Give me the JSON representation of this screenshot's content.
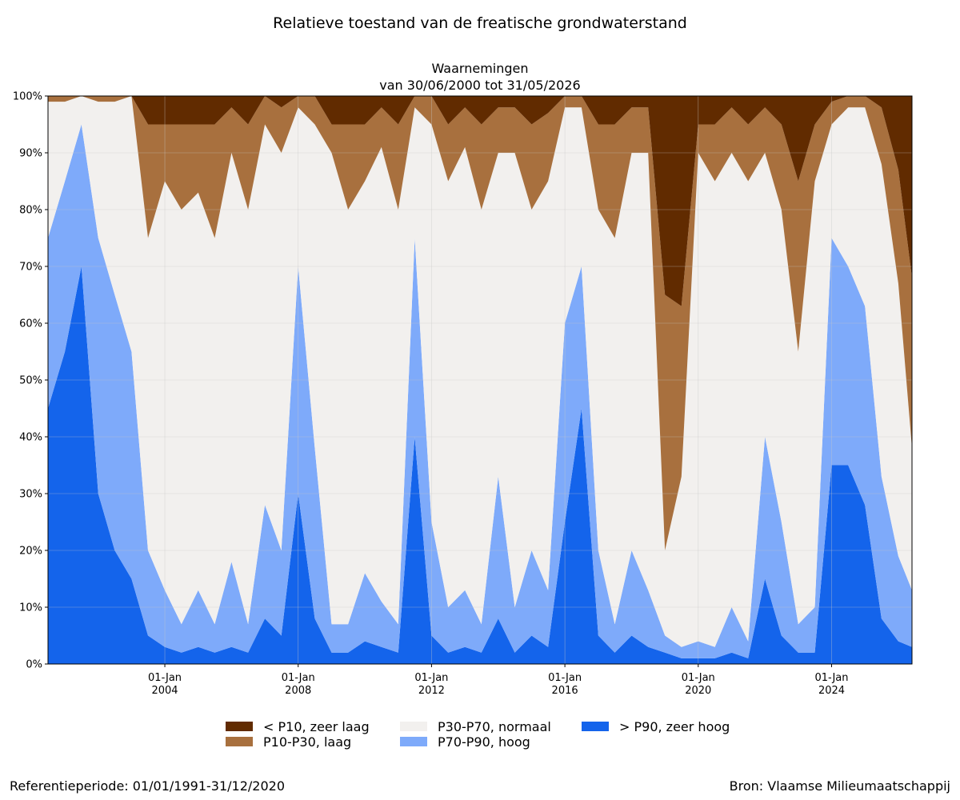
{
  "chart_data": {
    "type": "area",
    "title": "Relatieve toestand van de freatische grondwaterstand",
    "subtitle": [
      "Waarnemingen",
      "van 30/06/2000 tot 31/05/2026"
    ],
    "xlabel": "",
    "ylabel": "",
    "xlim": [
      "2000-06-30",
      "2026-05-31"
    ],
    "ylim": [
      0,
      100
    ],
    "y_unit": "%",
    "stacked": true,
    "yticks": [
      "0%",
      "10%",
      "20%",
      "30%",
      "40%",
      "50%",
      "60%",
      "70%",
      "80%",
      "90%",
      "100%"
    ],
    "xticks": [
      {
        "date": "2004-01-01",
        "label1": "01-Jan",
        "label2": "2004"
      },
      {
        "date": "2008-01-01",
        "label1": "01-Jan",
        "label2": "2008"
      },
      {
        "date": "2012-01-01",
        "label1": "01-Jan",
        "label2": "2012"
      },
      {
        "date": "2016-01-01",
        "label1": "01-Jan",
        "label2": "2016"
      },
      {
        "date": "2020-01-01",
        "label1": "01-Jan",
        "label2": "2020"
      },
      {
        "date": "2024-01-01",
        "label1": "01-Jan",
        "label2": "2024"
      }
    ],
    "grid": true,
    "legend_position": "bottom",
    "series": [
      {
        "name": "> P90, zeer hoog",
        "color": "#1464eb"
      },
      {
        "name": "P70-P90, hoog",
        "color": "#7eaafa"
      },
      {
        "name": "P30-P70, normaal",
        "color": "#f2f0ee"
      },
      {
        "name": "P10-P30, laag",
        "color": "#a8703e"
      },
      {
        "name": "< P10, zeer laag",
        "color": "#612b00"
      }
    ],
    "x": [
      "2000-06-30",
      "2001-01-01",
      "2001-07-01",
      "2002-01-01",
      "2002-07-01",
      "2003-01-01",
      "2003-07-01",
      "2004-01-01",
      "2004-07-01",
      "2005-01-01",
      "2005-07-01",
      "2006-01-01",
      "2006-07-01",
      "2007-01-01",
      "2007-07-01",
      "2008-01-01",
      "2008-07-01",
      "2009-01-01",
      "2009-07-01",
      "2010-01-01",
      "2010-07-01",
      "2011-01-01",
      "2011-07-01",
      "2012-01-01",
      "2012-07-01",
      "2013-01-01",
      "2013-07-01",
      "2014-01-01",
      "2014-07-01",
      "2015-01-01",
      "2015-07-01",
      "2016-01-01",
      "2016-07-01",
      "2017-01-01",
      "2017-07-01",
      "2018-01-01",
      "2018-07-01",
      "2019-01-01",
      "2019-07-01",
      "2020-01-01",
      "2020-07-01",
      "2021-01-01",
      "2021-07-01",
      "2022-01-01",
      "2022-07-01",
      "2023-01-01",
      "2023-07-01",
      "2024-01-01",
      "2024-07-01",
      "2025-01-01",
      "2025-07-01",
      "2026-01-01",
      "2026-05-31"
    ],
    "stacks": {
      "> P90, zeer hoog": [
        45,
        55,
        70,
        30,
        20,
        15,
        5,
        3,
        2,
        3,
        2,
        3,
        2,
        8,
        5,
        30,
        8,
        2,
        2,
        4,
        3,
        2,
        40,
        5,
        2,
        3,
        2,
        8,
        2,
        5,
        3,
        25,
        45,
        5,
        2,
        5,
        3,
        2,
        1,
        1,
        1,
        2,
        1,
        15,
        5,
        2,
        2,
        35,
        35,
        28,
        8,
        4,
        3
      ],
      "P70-P90, hoog": [
        30,
        30,
        25,
        45,
        45,
        40,
        15,
        10,
        5,
        10,
        5,
        15,
        5,
        20,
        15,
        40,
        30,
        5,
        5,
        12,
        8,
        5,
        35,
        20,
        8,
        10,
        5,
        25,
        8,
        15,
        10,
        35,
        25,
        15,
        5,
        15,
        10,
        3,
        2,
        3,
        2,
        8,
        3,
        25,
        20,
        5,
        8,
        40,
        35,
        35,
        25,
        15,
        10
      ],
      "P30-P70, normaal": [
        24,
        14,
        5,
        24,
        34,
        45,
        55,
        72,
        73,
        70,
        68,
        72,
        73,
        67,
        70,
        28,
        57,
        83,
        73,
        69,
        80,
        73,
        23,
        70,
        75,
        78,
        73,
        57,
        80,
        60,
        72,
        38,
        28,
        60,
        68,
        70,
        77,
        15,
        30,
        86,
        82,
        80,
        81,
        50,
        55,
        48,
        75,
        20,
        28,
        35,
        55,
        48,
        25
      ],
      "P10-P30, laag": [
        1,
        1,
        0,
        1,
        1,
        0,
        20,
        10,
        15,
        12,
        20,
        8,
        15,
        5,
        8,
        2,
        5,
        5,
        15,
        10,
        7,
        15,
        2,
        5,
        10,
        7,
        15,
        8,
        8,
        15,
        12,
        2,
        2,
        15,
        20,
        8,
        8,
        45,
        30,
        5,
        10,
        8,
        10,
        8,
        15,
        30,
        10,
        4,
        2,
        2,
        10,
        20,
        30
      ],
      "< P10, zeer laag": [
        0,
        0,
        0,
        0,
        0,
        0,
        5,
        5,
        5,
        5,
        5,
        2,
        5,
        0,
        2,
        0,
        0,
        5,
        5,
        5,
        2,
        5,
        0,
        0,
        5,
        2,
        5,
        2,
        2,
        5,
        3,
        0,
        0,
        5,
        5,
        2,
        2,
        35,
        37,
        5,
        5,
        2,
        5,
        2,
        5,
        15,
        5,
        1,
        0,
        0,
        2,
        13,
        32
      ]
    }
  },
  "footer": {
    "left": "Referentieperiode: 01/01/1991-31/12/2020",
    "right": "Bron: Vlaamse Milieumaatschappij"
  }
}
